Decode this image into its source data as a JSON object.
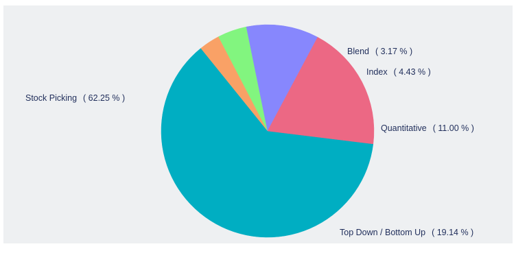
{
  "chart_data": {
    "type": "pie",
    "slices": [
      {
        "label": "Stock Picking",
        "value": 62.25,
        "display": "( 62.25 % )",
        "color": "#00aec2"
      },
      {
        "label": "Blend",
        "value": 3.17,
        "display": "( 3.17 % )",
        "color": "#f9a166"
      },
      {
        "label": "Index",
        "value": 4.43,
        "display": "( 4.43 % )",
        "color": "#82f57f"
      },
      {
        "label": "Quantitative",
        "value": 11.0,
        "display": "( 11.00 % )",
        "color": "#8787fd"
      },
      {
        "label": "Top Down / Bottom Up",
        "value": 19.14,
        "display": "( 19.14 % )",
        "color": "#ec6884"
      }
    ]
  }
}
